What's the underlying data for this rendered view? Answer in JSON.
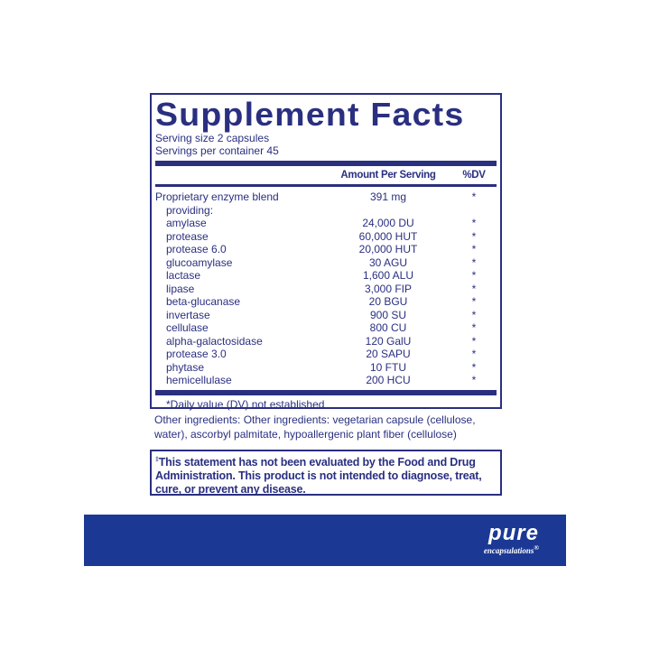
{
  "title": "Supplement Facts",
  "serving_size": "Serving size  2 capsules",
  "servings_per_container": "Servings per container  45",
  "header": {
    "amount": "Amount Per Serving",
    "dv": "%DV"
  },
  "blend": {
    "name": "Proprietary enzyme blend",
    "amount": "391 mg",
    "dv": "*",
    "sub": "providing:"
  },
  "items": [
    {
      "name": "amylase",
      "amount": "24,000 DU",
      "dv": "*"
    },
    {
      "name": "protease",
      "amount": "60,000 HUT",
      "dv": "*"
    },
    {
      "name": "protease 6.0",
      "amount": "20,000 HUT",
      "dv": "*"
    },
    {
      "name": "glucoamylase",
      "amount": "30 AGU",
      "dv": "*"
    },
    {
      "name": "lactase",
      "amount": "1,600 ALU",
      "dv": "*"
    },
    {
      "name": "lipase",
      "amount": "3,000 FIP",
      "dv": "*"
    },
    {
      "name": "beta-glucanase",
      "amount": "20 BGU",
      "dv": "*"
    },
    {
      "name": "invertase",
      "amount": "900 SU",
      "dv": "*"
    },
    {
      "name": "cellulase",
      "amount": "800 CU",
      "dv": "*"
    },
    {
      "name": "alpha-galactosidase",
      "amount": "120 GalU",
      "dv": "*"
    },
    {
      "name": "protease 3.0",
      "amount": "20 SAPU",
      "dv": "*"
    },
    {
      "name": "phytase",
      "amount": "10 FTU",
      "dv": "*"
    },
    {
      "name": "hemicellulase",
      "amount": "200 HCU",
      "dv": "*"
    }
  ],
  "footnote": "*Daily value (DV) not established",
  "other_ingredients": "Other ingredients: Other ingredients: vegetarian capsule (cellulose, water), ascorbyl palmitate, hypoallergenic plant fiber (cellulose)",
  "disclaimer_mark": "‡",
  "disclaimer": "This statement has not been evaluated by the Food and Drug Administration. This product is not intended to diagnose, treat, cure, or prevent any disease.",
  "brand": {
    "name": "pure",
    "sub": "encapsulations",
    "mark": "®"
  },
  "colors": {
    "text": "#2a2f80",
    "band": "#1b3994"
  }
}
